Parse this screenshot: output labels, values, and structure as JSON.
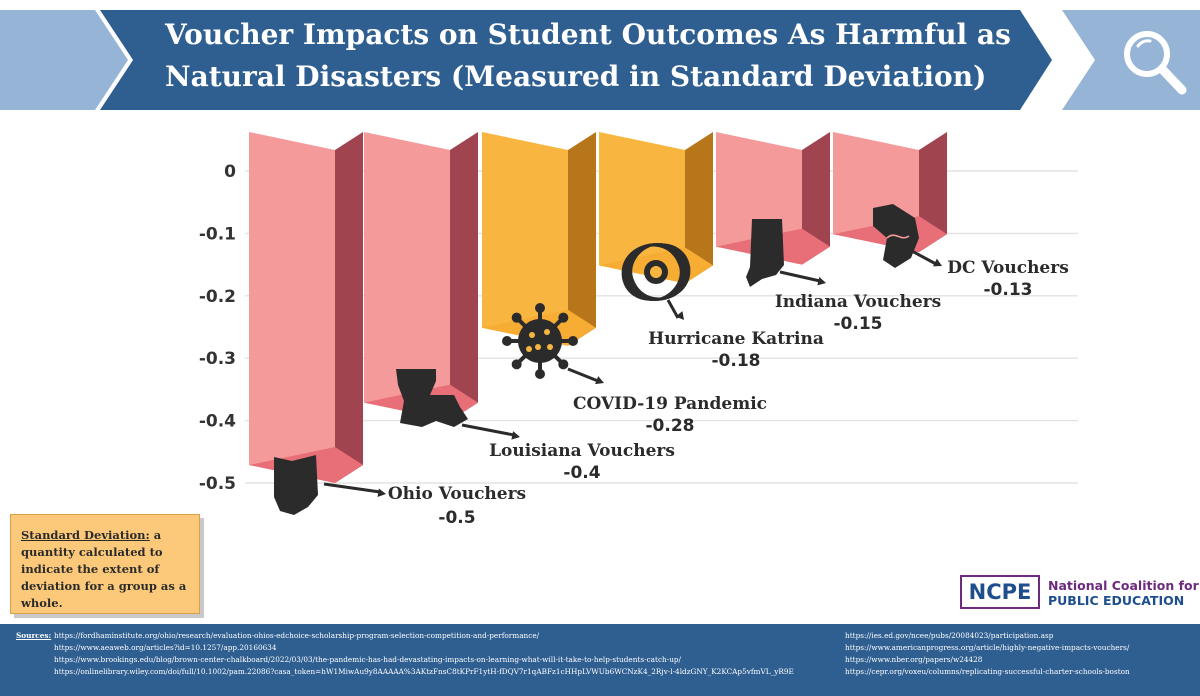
{
  "header": {
    "title": "Voucher Impacts on Student Outcomes As Harmful as Natural Disasters (Measured in Standard Deviation)",
    "search_icon": "magnifying-glass-icon"
  },
  "chart_data": {
    "type": "bar",
    "title": "Voucher Impacts on Student Outcomes As Harmful as Natural Disasters (Measured in Standard Deviation)",
    "categories": [
      "Ohio Vouchers",
      "Louisiana Vouchers",
      "COVID-19 Pandemic",
      "Hurricane Katrina",
      "Indiana Vouchers",
      "DC Vouchers"
    ],
    "values": [
      -0.5,
      -0.4,
      -0.28,
      -0.18,
      -0.15,
      -0.13
    ],
    "value_labels": [
      "-0.5",
      "-0.4",
      "-0.28",
      "-0.18",
      "-0.15",
      "-0.13"
    ],
    "yticks": [
      "0",
      "-0.1",
      "-0.2",
      "-0.3",
      "-0.4",
      "-0.5"
    ],
    "ylim": [
      -0.5,
      0
    ],
    "grid": true,
    "bar_style": "3d",
    "icons": [
      "ohio-state-icon",
      "louisiana-state-icon",
      "virus-icon",
      "hurricane-icon",
      "indiana-state-icon",
      "dc-map-icon"
    ],
    "colors": {
      "voucher_front": "#f59a9a",
      "voucher_side": "#a0454f",
      "voucher_bottom": "#e86f78",
      "disaster_front": "#f8b640",
      "disaster_side": "#b8761b",
      "disaster_bottom": "#f7ac34"
    },
    "categories_colorkey": [
      "voucher",
      "voucher",
      "disaster",
      "disaster",
      "voucher",
      "voucher"
    ]
  },
  "definition": {
    "term": "Standard Deviation:",
    "text": "a quantity calculated to indicate the extent of deviation for a group as a whole."
  },
  "logo": {
    "abbrev": "NCPE",
    "line1": "National Coalition for",
    "line2": "PUBLIC EDUCATION"
  },
  "footer": {
    "label": "Sources:",
    "sources_left": [
      "https://fordhaminstitute.org/ohio/research/evaluation-ohios-edchoice-scholarship-program-selection-competition-and-performance/",
      "https://www.aeaweb.org/articles?id=10.1257/app.20160634",
      "https://www.brookings.edu/blog/brown-center-chalkboard/2022/03/03/the-pandemic-has-had-devastating-impacts-on-learning-what-will-it-take-to-help-students-catch-up/",
      "https://onlinelibrary.wiley.com/doi/full/10.1002/pam.22086?casa_token=hW1MiwAu9y8AAAAA%3AKtzFnsC8tKPrF1ytH-fDQV7r1qABFz1cHHpLVWUb6WCNzK4_2Rjv-l-4ldzGNY_K2KCAp5vfmVL_yR9E"
    ],
    "sources_right": [
      "https://ies.ed.gov/ncee/pubs/20084023/participation.asp",
      "https://www.americanprogress.org/article/highly-negative-impacts-vouchers/",
      "https://www.nber.org/papers/w24428",
      "https://cepr.org/voxeu/columns/replicating-successful-charter-schools-boston"
    ]
  }
}
